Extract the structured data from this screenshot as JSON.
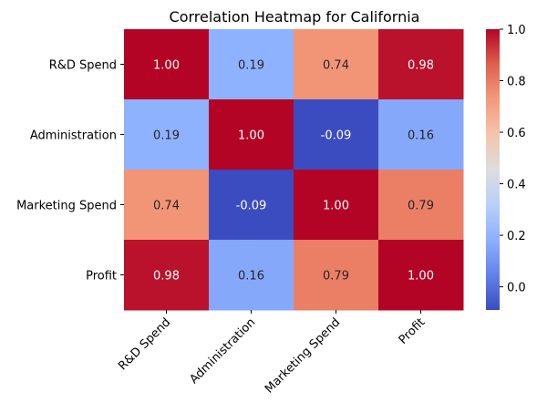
{
  "chart_data": {
    "type": "heatmap",
    "title": "Correlation Heatmap for California",
    "xlabel": "",
    "ylabel": "",
    "x_categories": [
      "R&D Spend",
      "Administration",
      "Marketing Spend",
      "Profit"
    ],
    "y_categories": [
      "R&D Spend",
      "Administration",
      "Marketing Spend",
      "Profit"
    ],
    "values": [
      [
        1.0,
        0.19,
        0.74,
        0.98
      ],
      [
        0.19,
        1.0,
        -0.09,
        0.16
      ],
      [
        0.74,
        -0.09,
        1.0,
        0.79
      ],
      [
        0.98,
        0.16,
        0.79,
        1.0
      ]
    ],
    "value_labels": [
      [
        "1.00",
        "0.19",
        "0.74",
        "0.98"
      ],
      [
        "0.19",
        "1.00",
        "-0.09",
        "0.16"
      ],
      [
        "0.74",
        "-0.09",
        "1.00",
        "0.79"
      ],
      [
        "0.98",
        "0.16",
        "0.79",
        "1.00"
      ]
    ],
    "colormap": "coolwarm",
    "colorbar": {
      "range": [
        -0.09,
        1.0
      ],
      "ticks": [
        0.0,
        0.2,
        0.4,
        0.6,
        0.8,
        1.0
      ],
      "tick_labels": [
        "0.0",
        "0.2",
        "0.4",
        "0.6",
        "0.8",
        "1.0"
      ]
    },
    "grid": false,
    "legend": "colorbar-right"
  }
}
